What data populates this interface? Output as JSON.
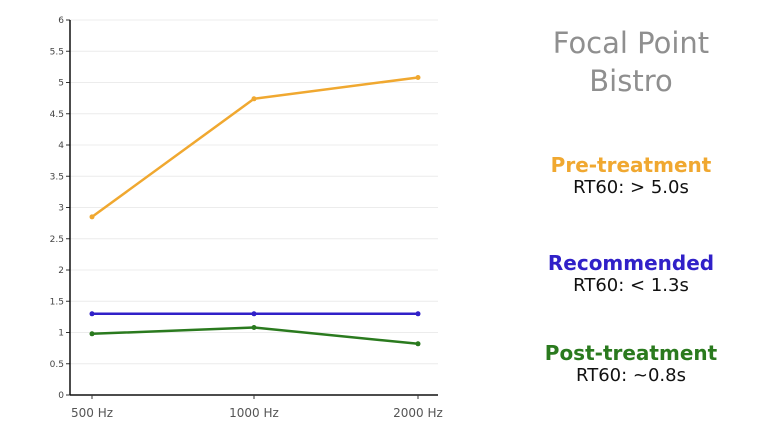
{
  "chart_data": {
    "type": "line",
    "title": "",
    "xlabel": "",
    "ylabel": "",
    "categories": [
      "500 Hz",
      "1000 Hz",
      "2000 Hz"
    ],
    "ylim": [
      0,
      6
    ],
    "yticks": [
      "0",
      "0.5",
      "1",
      "1.5",
      "2",
      "2.5",
      "3",
      "3.5",
      "4",
      "4.5",
      "5",
      "5.5",
      "6"
    ],
    "grid": true,
    "series": [
      {
        "name": "Pre-treatment",
        "color": "#f0a830",
        "values": [
          2.85,
          4.74,
          5.08
        ]
      },
      {
        "name": "Recommended",
        "color": "#3020c8",
        "values": [
          1.3,
          1.3,
          1.3
        ]
      },
      {
        "name": "Post-treatment",
        "color": "#2a7a1e",
        "values": [
          0.98,
          1.08,
          0.82
        ]
      }
    ]
  },
  "panel": {
    "title_line1": "Focal Point",
    "title_line2": "Bistro",
    "pre": {
      "label": "Pre-treatment",
      "value": "RT60: > 5.0s",
      "color": "#f0a830"
    },
    "recommended": {
      "label": "Recommended",
      "value": "RT60: < 1.3s",
      "color": "#3020c8"
    },
    "post": {
      "label": "Post-treatment",
      "value": "RT60: ~0.8s",
      "color": "#2a7a1e"
    }
  }
}
